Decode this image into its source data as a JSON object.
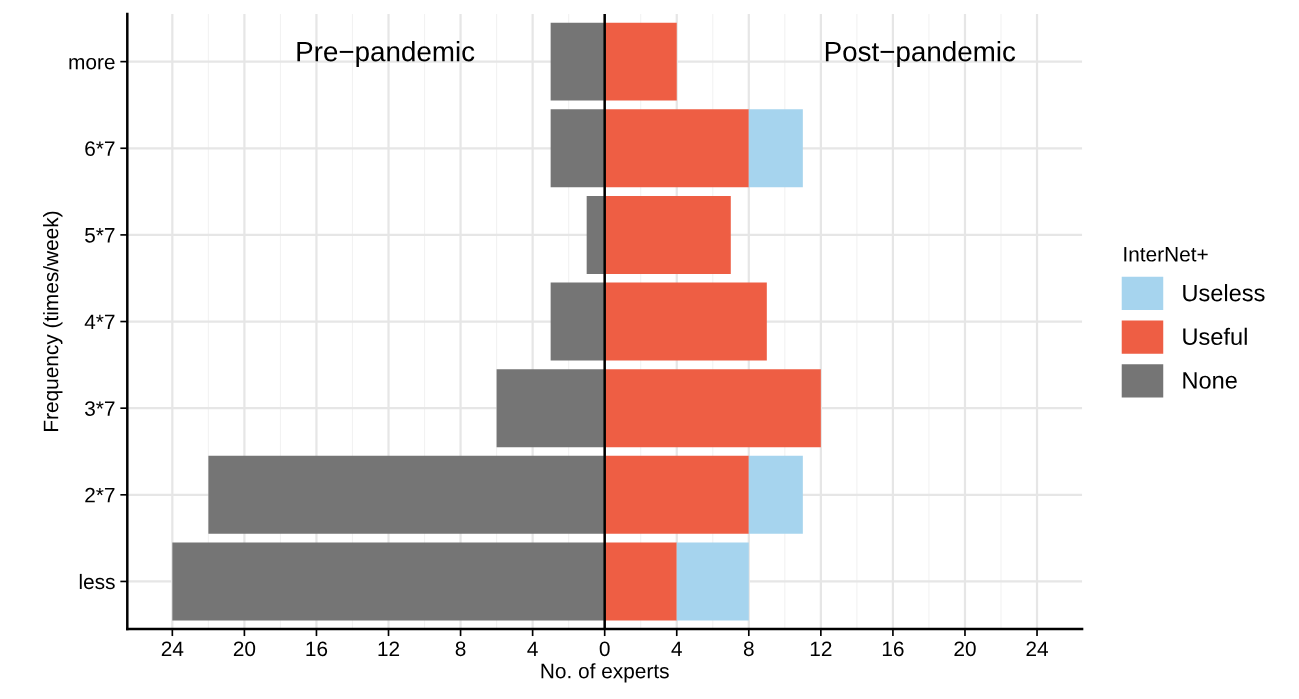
{
  "chart_data": {
    "type": "bar",
    "orientation": "horizontal",
    "stacked": true,
    "categories": [
      "more",
      "6*7",
      "5*7",
      "4*7",
      "3*7",
      "2*7",
      "less"
    ],
    "series": [
      {
        "name": "None",
        "color": "#757575",
        "values": [
          -3,
          -3,
          -1,
          -3,
          -6,
          -22,
          -24
        ]
      },
      {
        "name": "Useful",
        "color": "#ee5e44",
        "values": [
          4,
          8,
          7,
          9,
          12,
          8,
          4
        ]
      },
      {
        "name": "Useless",
        "color": "#a6d4ee",
        "values": [
          0,
          3,
          0,
          0,
          0,
          3,
          4
        ]
      }
    ],
    "xlim": [
      -26.5,
      26.5
    ],
    "xticks": [
      {
        "value": -24,
        "label": "24"
      },
      {
        "value": -20,
        "label": "20"
      },
      {
        "value": -16,
        "label": "16"
      },
      {
        "value": -12,
        "label": "12"
      },
      {
        "value": -8,
        "label": "8"
      },
      {
        "value": -4,
        "label": "4"
      },
      0,
      4,
      8,
      12,
      16,
      20,
      24
    ],
    "xlabel": "No. of experts",
    "ylabel": "Frequency (times/week)",
    "legend_title": "InterNet+",
    "legend": "right",
    "grid": true,
    "ref_lines": [
      {
        "axis": "x",
        "value": 0,
        "color": "#000000"
      }
    ],
    "annotations": [
      "Pre−pandemic",
      "Post−pandemic"
    ]
  }
}
